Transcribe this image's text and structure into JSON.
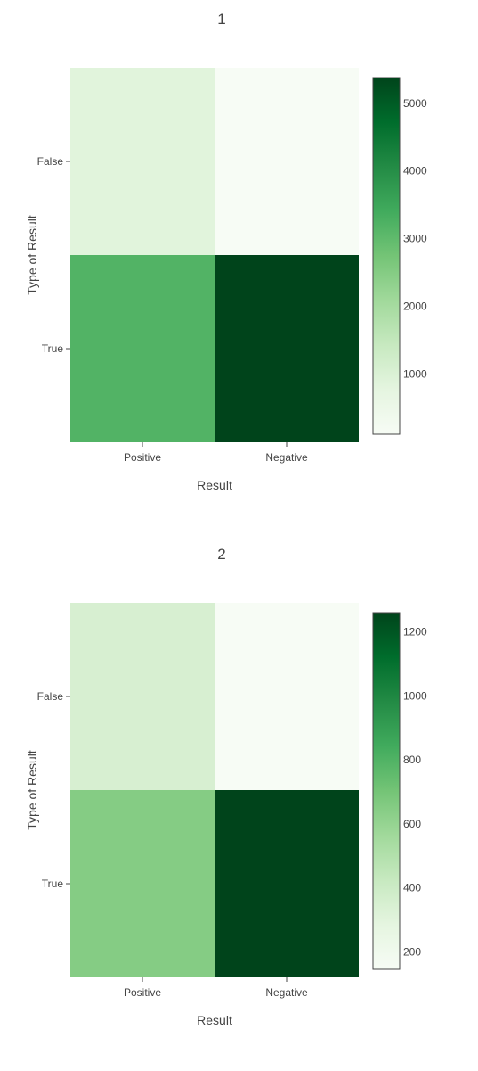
{
  "chart_data": [
    {
      "type": "heatmap",
      "title": "1",
      "xlabel": "Result",
      "ylabel": "Type of Result",
      "x": [
        "Positive",
        "Negative"
      ],
      "y": [
        "False",
        "True"
      ],
      "z": [
        [
          850,
          110
        ],
        [
          3180,
          5380
        ]
      ],
      "colorscale": "Greens",
      "colorbar": {
        "range": [
          110,
          5380
        ],
        "ticks": [
          1000,
          2000,
          3000,
          4000,
          5000
        ]
      }
    },
    {
      "type": "heatmap",
      "title": "2",
      "xlabel": "Result",
      "ylabel": "Type of Result",
      "x": [
        "Positive",
        "Negative"
      ],
      "y": [
        "False",
        "True"
      ],
      "z": [
        [
          350,
          145
        ],
        [
          650,
          1260
        ]
      ],
      "colorscale": "Greens",
      "colorbar": {
        "range": [
          145,
          1260
        ],
        "ticks": [
          200,
          400,
          600,
          800,
          1000,
          1200
        ]
      }
    }
  ]
}
